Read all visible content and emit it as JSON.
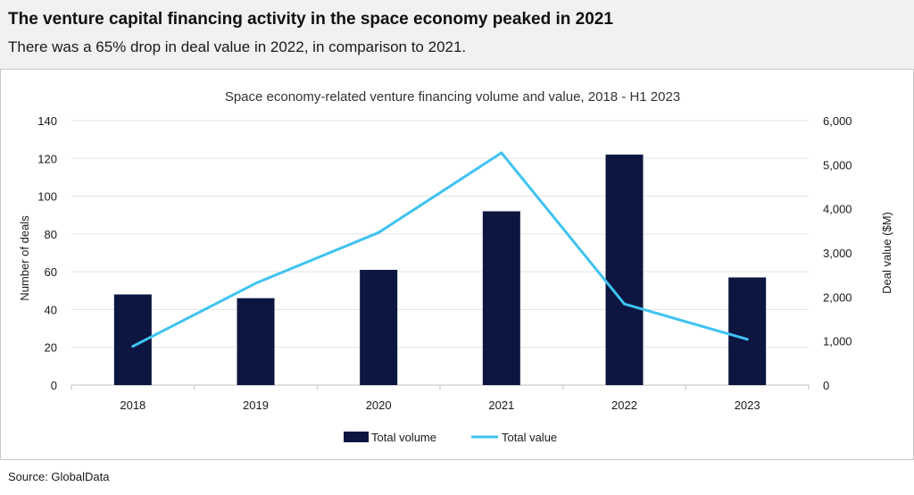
{
  "header": {
    "title": "The venture capital financing activity in the space economy peaked in 2021",
    "subtitle": "There was a 65% drop in deal value in 2022, in comparison to 2021."
  },
  "footer": {
    "source": "Source: GlobalData"
  },
  "colors": {
    "bar": "#0d1640",
    "line": "#3fc3f2"
  },
  "chart_data": {
    "type": "bar",
    "title": "Space economy-related venture financing volume and value, 2018 - H1 2023",
    "categories": [
      "2018",
      "2019",
      "2020",
      "2021",
      "2022",
      "2023"
    ],
    "ylabel": "Number of deals",
    "ylim": [
      0,
      140
    ],
    "yticks": [
      0,
      20,
      40,
      60,
      80,
      100,
      120,
      140
    ],
    "y2label": "Deal value ($M)",
    "y2lim": [
      0,
      6000
    ],
    "y2ticks": [
      "0",
      "1,000",
      "2,000",
      "3,000",
      "4,000",
      "5,000",
      "6,000"
    ],
    "grid": true,
    "legend_position": "bottom",
    "series": [
      {
        "name": "Total volume",
        "type": "bar",
        "axis": "left",
        "values": [
          48,
          46,
          61,
          92,
          122,
          57
        ]
      },
      {
        "name": "Total value",
        "type": "line",
        "axis": "right",
        "values": [
          880,
          2310,
          3460,
          5270,
          1840,
          1040
        ]
      }
    ]
  }
}
